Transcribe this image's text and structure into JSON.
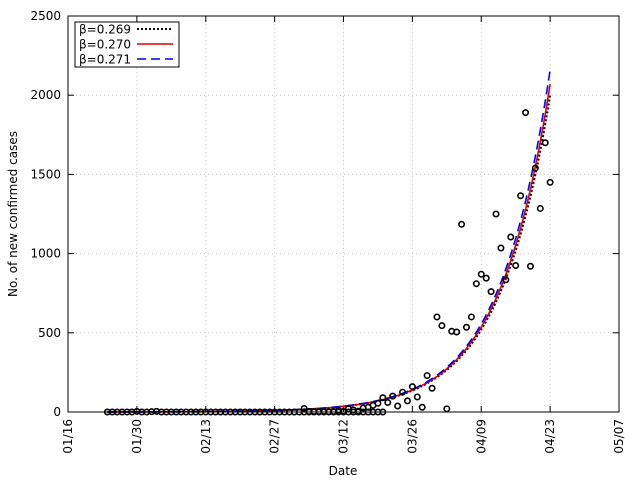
{
  "chart_data": {
    "type": "scatter",
    "title": "",
    "xlabel": "Date",
    "ylabel": "No. of new confirmed cases",
    "x_tick_labels": [
      "01/16",
      "01/30",
      "02/13",
      "02/27",
      "03/12",
      "03/26",
      "04/09",
      "04/23",
      "05/07"
    ],
    "y_tick_labels": [
      "0",
      "500",
      "1000",
      "1500",
      "2000",
      "2500"
    ],
    "x_range_days": [
      0,
      112
    ],
    "ylim": [
      0,
      2500
    ],
    "x_axis_start": "01/16",
    "grid": true,
    "legend_position": "top-left",
    "observed": [
      [
        8,
        0
      ],
      [
        9,
        0
      ],
      [
        10,
        0
      ],
      [
        11,
        0
      ],
      [
        12,
        0
      ],
      [
        13,
        0
      ],
      [
        14,
        4
      ],
      [
        15,
        0
      ],
      [
        16,
        0
      ],
      [
        17,
        2
      ],
      [
        18,
        4
      ],
      [
        19,
        0
      ],
      [
        20,
        0
      ],
      [
        21,
        0
      ],
      [
        22,
        0
      ],
      [
        23,
        0
      ],
      [
        24,
        0
      ],
      [
        25,
        0
      ],
      [
        26,
        0
      ],
      [
        27,
        0
      ],
      [
        28,
        0
      ],
      [
        29,
        0
      ],
      [
        30,
        0
      ],
      [
        31,
        0
      ],
      [
        32,
        0
      ],
      [
        33,
        0
      ],
      [
        34,
        0
      ],
      [
        35,
        0
      ],
      [
        36,
        0
      ],
      [
        37,
        0
      ],
      [
        38,
        0
      ],
      [
        39,
        0
      ],
      [
        40,
        0
      ],
      [
        41,
        0
      ],
      [
        42,
        0
      ],
      [
        43,
        0
      ],
      [
        44,
        0
      ],
      [
        45,
        0
      ],
      [
        46,
        0
      ],
      [
        47,
        0
      ],
      [
        48,
        0
      ],
      [
        49,
        0
      ],
      [
        50,
        0
      ],
      [
        51,
        0
      ],
      [
        52,
        0
      ],
      [
        53,
        0
      ],
      [
        54,
        0
      ],
      [
        55,
        0
      ],
      [
        56,
        0
      ],
      [
        57,
        0
      ],
      [
        58,
        0
      ],
      [
        59,
        0
      ],
      [
        60,
        0
      ],
      [
        61,
        0
      ],
      [
        62,
        0
      ],
      [
        63,
        0
      ],
      [
        64,
        0
      ],
      [
        48,
        22
      ],
      [
        49,
        3
      ],
      [
        50,
        3
      ],
      [
        51,
        3
      ],
      [
        52,
        4
      ],
      [
        53,
        2
      ],
      [
        54,
        3
      ],
      [
        55,
        10
      ],
      [
        56,
        5
      ],
      [
        57,
        20
      ],
      [
        58,
        13
      ],
      [
        59,
        5
      ],
      [
        60,
        25
      ],
      [
        61,
        30
      ],
      [
        62,
        42
      ],
      [
        63,
        55
      ],
      [
        64,
        90
      ],
      [
        65,
        60
      ],
      [
        66,
        100
      ],
      [
        67,
        38
      ],
      [
        68,
        125
      ],
      [
        69,
        70
      ],
      [
        70,
        160
      ],
      [
        71,
        95
      ],
      [
        72,
        30
      ],
      [
        73,
        230
      ],
      [
        74,
        150
      ],
      [
        75,
        600
      ],
      [
        76,
        545
      ],
      [
        77,
        20
      ],
      [
        78,
        510
      ],
      [
        79,
        505
      ],
      [
        80,
        1185
      ],
      [
        81,
        535
      ],
      [
        82,
        600
      ],
      [
        83,
        810
      ],
      [
        84,
        870
      ],
      [
        85,
        845
      ],
      [
        86,
        760
      ],
      [
        87,
        1250
      ],
      [
        88,
        1035
      ],
      [
        89,
        835
      ],
      [
        90,
        1105
      ],
      [
        91,
        925
      ],
      [
        92,
        1365
      ],
      [
        93,
        1890
      ],
      [
        94,
        920
      ],
      [
        95,
        1540
      ],
      [
        96,
        1285
      ],
      [
        97,
        1700
      ],
      [
        98,
        1450
      ]
    ],
    "series": [
      {
        "name": "β=0.269",
        "color": "#000000",
        "style": "dotted",
        "beta": 0.269,
        "start_day": 8,
        "end_day": 98,
        "start_value": 0.35,
        "end_value": 2000
      },
      {
        "name": "β=0.270",
        "color": "#dd0000",
        "style": "solid",
        "beta": 0.27,
        "start_day": 8,
        "end_day": 98,
        "start_value": 0.35,
        "end_value": 2070
      },
      {
        "name": "β=0.271",
        "color": "#0000ee",
        "style": "dashed",
        "beta": 0.271,
        "start_day": 8,
        "end_day": 98,
        "start_value": 0.35,
        "end_value": 2160
      }
    ]
  }
}
